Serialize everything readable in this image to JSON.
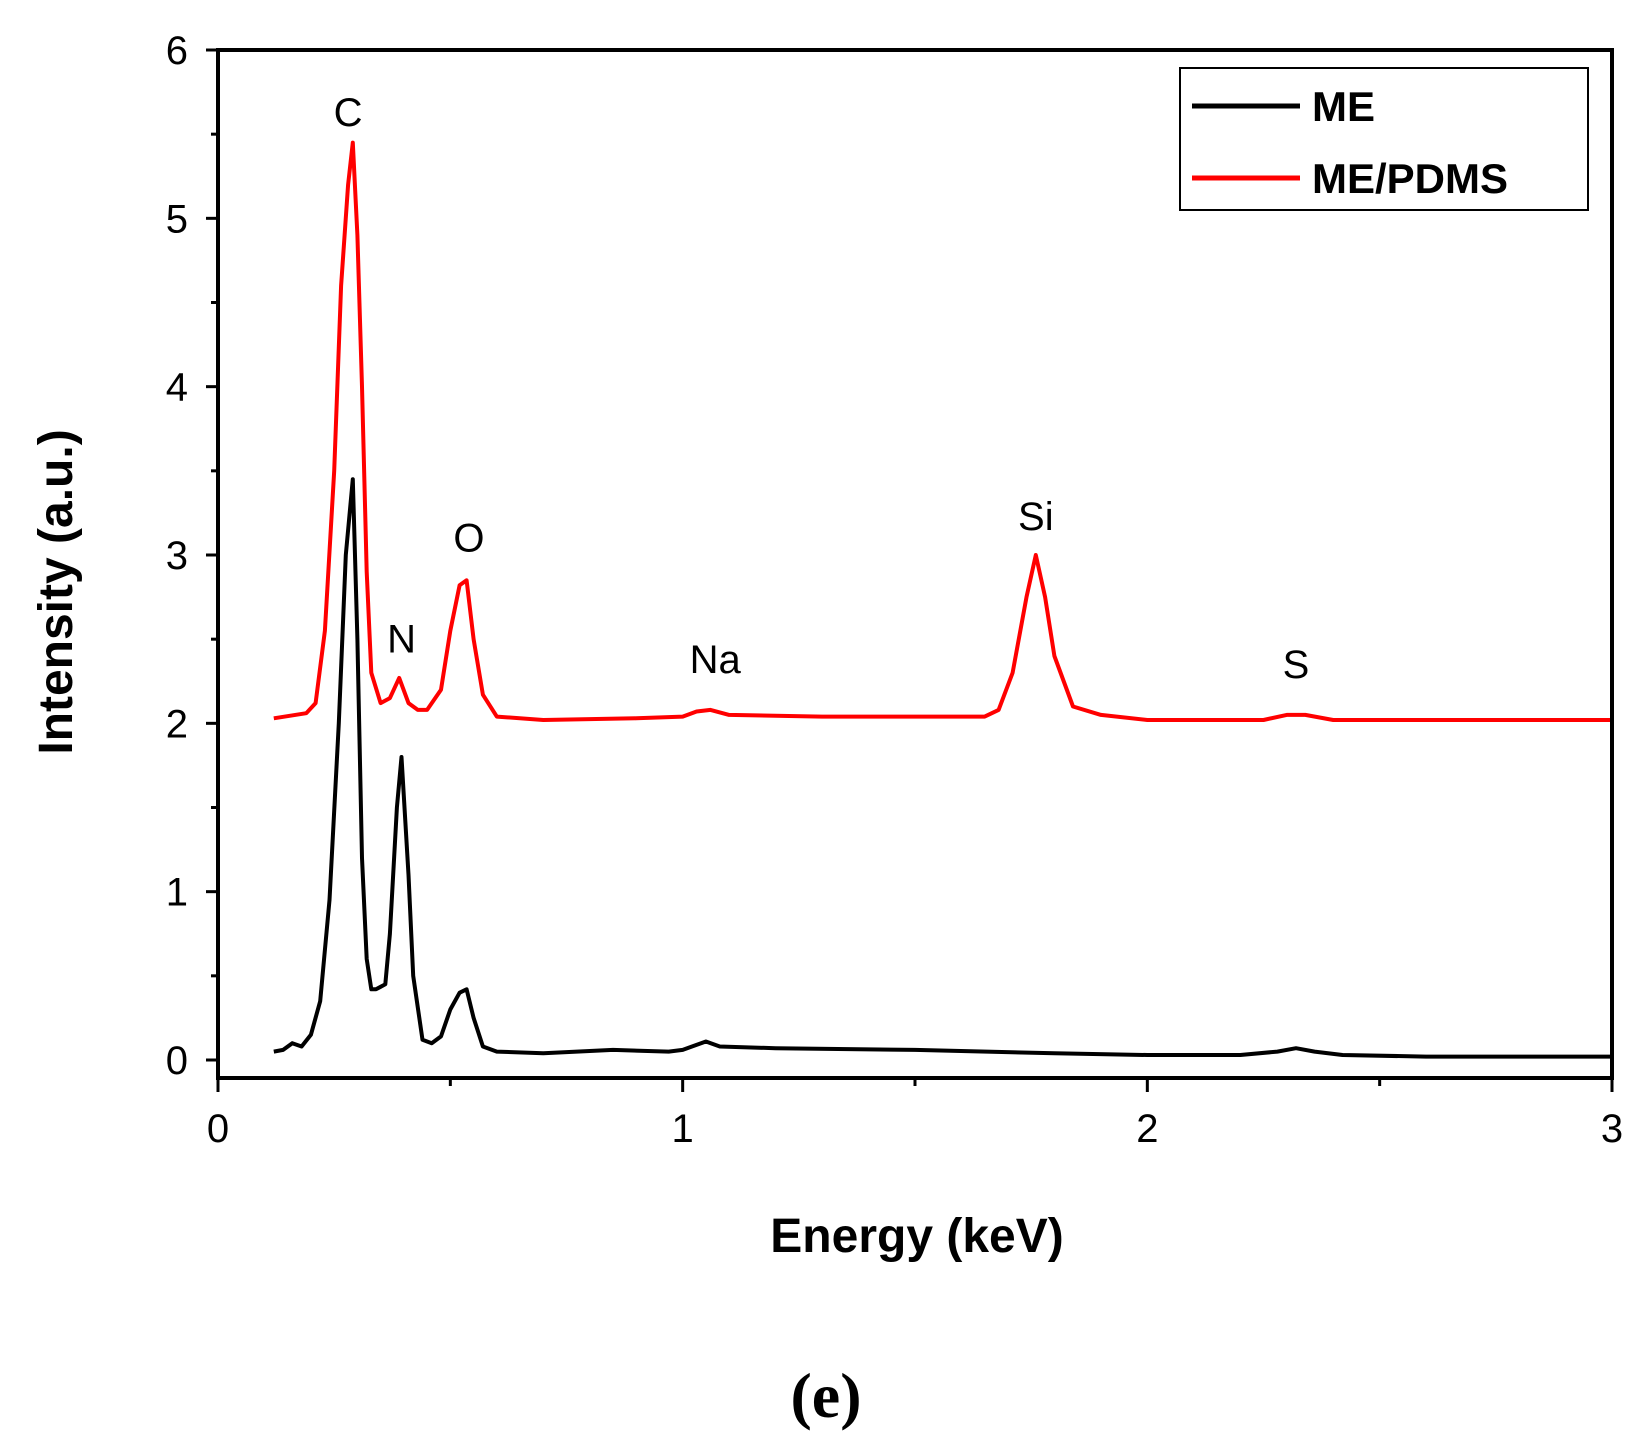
{
  "chart_data": {
    "type": "line",
    "xlabel": "Energy (keV)",
    "ylabel": "Intensity (a.u.)",
    "xlim": [
      0,
      3
    ],
    "ylim": [
      0,
      6
    ],
    "x_ticks": [
      "0",
      "1",
      "2",
      "3"
    ],
    "y_ticks": [
      "0",
      "1",
      "2",
      "3",
      "4",
      "5",
      "6"
    ],
    "x_tick_values": [
      0,
      1,
      2,
      3
    ],
    "y_tick_values": [
      0,
      1,
      2,
      3,
      4,
      5,
      6
    ],
    "legend_position": "top-right",
    "panel_label": "(e)",
    "series": [
      {
        "name": "ME",
        "color": "#000000",
        "x": [
          0.12,
          0.14,
          0.16,
          0.18,
          0.2,
          0.22,
          0.24,
          0.26,
          0.275,
          0.29,
          0.3,
          0.31,
          0.32,
          0.33,
          0.34,
          0.36,
          0.37,
          0.385,
          0.395,
          0.41,
          0.42,
          0.44,
          0.46,
          0.48,
          0.5,
          0.52,
          0.535,
          0.55,
          0.57,
          0.6,
          0.7,
          0.85,
          0.97,
          1.0,
          1.02,
          1.05,
          1.08,
          1.2,
          1.5,
          1.8,
          2.0,
          2.2,
          2.28,
          2.32,
          2.36,
          2.42,
          2.6,
          3.0
        ],
        "y": [
          0.05,
          0.06,
          0.1,
          0.08,
          0.15,
          0.35,
          0.95,
          2.0,
          3.0,
          3.45,
          2.5,
          1.2,
          0.6,
          0.42,
          0.42,
          0.45,
          0.75,
          1.5,
          1.8,
          1.1,
          0.5,
          0.12,
          0.1,
          0.14,
          0.3,
          0.4,
          0.42,
          0.25,
          0.08,
          0.05,
          0.04,
          0.06,
          0.05,
          0.06,
          0.08,
          0.11,
          0.08,
          0.07,
          0.06,
          0.04,
          0.03,
          0.03,
          0.05,
          0.07,
          0.05,
          0.03,
          0.02,
          0.02
        ]
      },
      {
        "name": "ME/PDMS",
        "color": "#ff0000",
        "x": [
          0.12,
          0.19,
          0.21,
          0.23,
          0.25,
          0.265,
          0.28,
          0.29,
          0.3,
          0.31,
          0.32,
          0.33,
          0.35,
          0.37,
          0.39,
          0.41,
          0.43,
          0.45,
          0.48,
          0.5,
          0.52,
          0.535,
          0.55,
          0.57,
          0.6,
          0.7,
          0.9,
          1.0,
          1.03,
          1.06,
          1.1,
          1.3,
          1.5,
          1.65,
          1.68,
          1.71,
          1.74,
          1.76,
          1.78,
          1.8,
          1.84,
          1.9,
          2.0,
          2.25,
          2.3,
          2.34,
          2.4,
          2.6,
          3.0
        ],
        "y": [
          2.03,
          2.06,
          2.12,
          2.55,
          3.5,
          4.6,
          5.2,
          5.45,
          4.9,
          4.0,
          2.9,
          2.3,
          2.12,
          2.15,
          2.27,
          2.12,
          2.08,
          2.08,
          2.2,
          2.55,
          2.82,
          2.85,
          2.5,
          2.17,
          2.04,
          2.02,
          2.03,
          2.04,
          2.07,
          2.08,
          2.05,
          2.04,
          2.04,
          2.04,
          2.08,
          2.3,
          2.75,
          3.0,
          2.75,
          2.4,
          2.1,
          2.05,
          2.02,
          2.02,
          2.05,
          2.05,
          2.02,
          2.02,
          2.02
        ]
      }
    ],
    "annotations": [
      {
        "text": "C",
        "x": 0.28,
        "y": 5.55
      },
      {
        "text": "N",
        "x": 0.395,
        "y": 2.42
      },
      {
        "text": "O",
        "x": 0.54,
        "y": 3.02
      },
      {
        "text": "Na",
        "x": 1.07,
        "y": 2.3
      },
      {
        "text": "Si",
        "x": 1.76,
        "y": 3.15
      },
      {
        "text": "S",
        "x": 2.32,
        "y": 2.27
      }
    ]
  }
}
